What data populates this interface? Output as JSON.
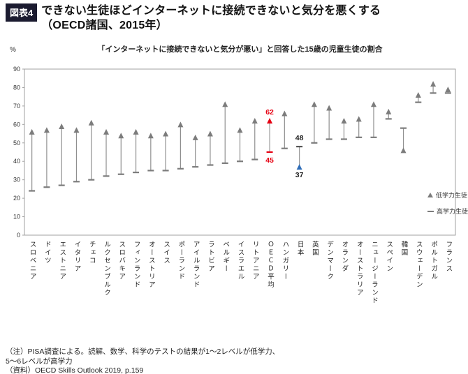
{
  "page": {
    "badge": "図表4",
    "title_line1": "できない生徒ほどインターネットに接続できないと気分を悪くする",
    "title_line2": "（OECD諸国、2015年）"
  },
  "legend": {
    "low": "低学力生徒",
    "high": "高学力生徒"
  },
  "notes": [
    "（注）PISA調査による。読解、数学、科学のテストの結果が1～2レベルが低学力、",
    "5～6レベルが高学力",
    "（資料）OECD Skills Outlook 2019, p.159"
  ],
  "colors": {
    "marker_default": "#7c7c7c",
    "line_default": "#8f8f8f",
    "frame": "#a0a0a0",
    "oecd_red": "#e60012",
    "japan_blue": "#2f6db8"
  },
  "chart_data": {
    "type": "range-bar",
    "title": "「インターネットに接続できないと気分が悪い」と回答した15歳の児童生徒の割合",
    "ylabel": "%",
    "ylim": [
      0,
      90
    ],
    "yticks": [
      0,
      10,
      20,
      30,
      40,
      50,
      60,
      70,
      80,
      90
    ],
    "grid": false,
    "legend_position": "inside-right",
    "categories": [
      "スロベニア",
      "ドイツ",
      "エストニア",
      "イタリア",
      "チェコ",
      "ルクセンブルク",
      "スロバキア",
      "フィンランド",
      "オーストリア",
      "スイス",
      "ポーランド",
      "アイルランド",
      "ラトビア",
      "ベルギー",
      "イスラエル",
      "リトアニア",
      "ＯＥＣＤ平均",
      "ハンガリー",
      "日本",
      "英国",
      "デンマーク",
      "オランダ",
      "オーストラリア",
      "ニュージーランド",
      "スペイン",
      "韓国",
      "スウェーデン",
      "ポルトガル",
      "フランス"
    ],
    "series": [
      {
        "name": "低学力生徒",
        "marker": "triangle",
        "values": [
          56,
          57,
          59,
          57,
          61,
          56,
          54,
          56,
          54,
          55,
          60,
          53,
          55,
          71,
          57,
          62,
          62,
          66,
          37,
          71,
          69,
          62,
          63,
          71,
          67,
          46,
          76,
          82,
          79
        ]
      },
      {
        "name": "高学力生徒",
        "marker": "dash",
        "values": [
          24,
          26,
          27,
          29,
          30,
          32,
          33,
          34,
          35,
          35,
          36,
          37,
          38,
          39,
          40,
          41,
          45,
          47,
          48,
          50,
          52,
          52,
          53,
          53,
          63,
          58,
          72,
          77,
          77
        ]
      }
    ],
    "highlights": {
      "ＯＥＣＤ平均": {
        "triangle": "#e60012",
        "dash": "#e60012",
        "line": "#9a9a9a"
      },
      "日本": {
        "triangle": "#2f6db8",
        "dash": "#555555",
        "line": "#9a9a9a"
      }
    },
    "annotations": [
      {
        "category": "ＯＥＣＤ平均",
        "value": 62,
        "pos": "above",
        "color": "#e60012",
        "text": "62"
      },
      {
        "category": "ＯＥＣＤ平均",
        "value": 45,
        "pos": "below",
        "color": "#e60012",
        "text": "45"
      },
      {
        "category": "日本",
        "value": 48,
        "pos": "above",
        "color": "#222222",
        "text": "48"
      },
      {
        "category": "日本",
        "value": 37,
        "pos": "below",
        "color": "#222222",
        "text": "37"
      }
    ]
  }
}
